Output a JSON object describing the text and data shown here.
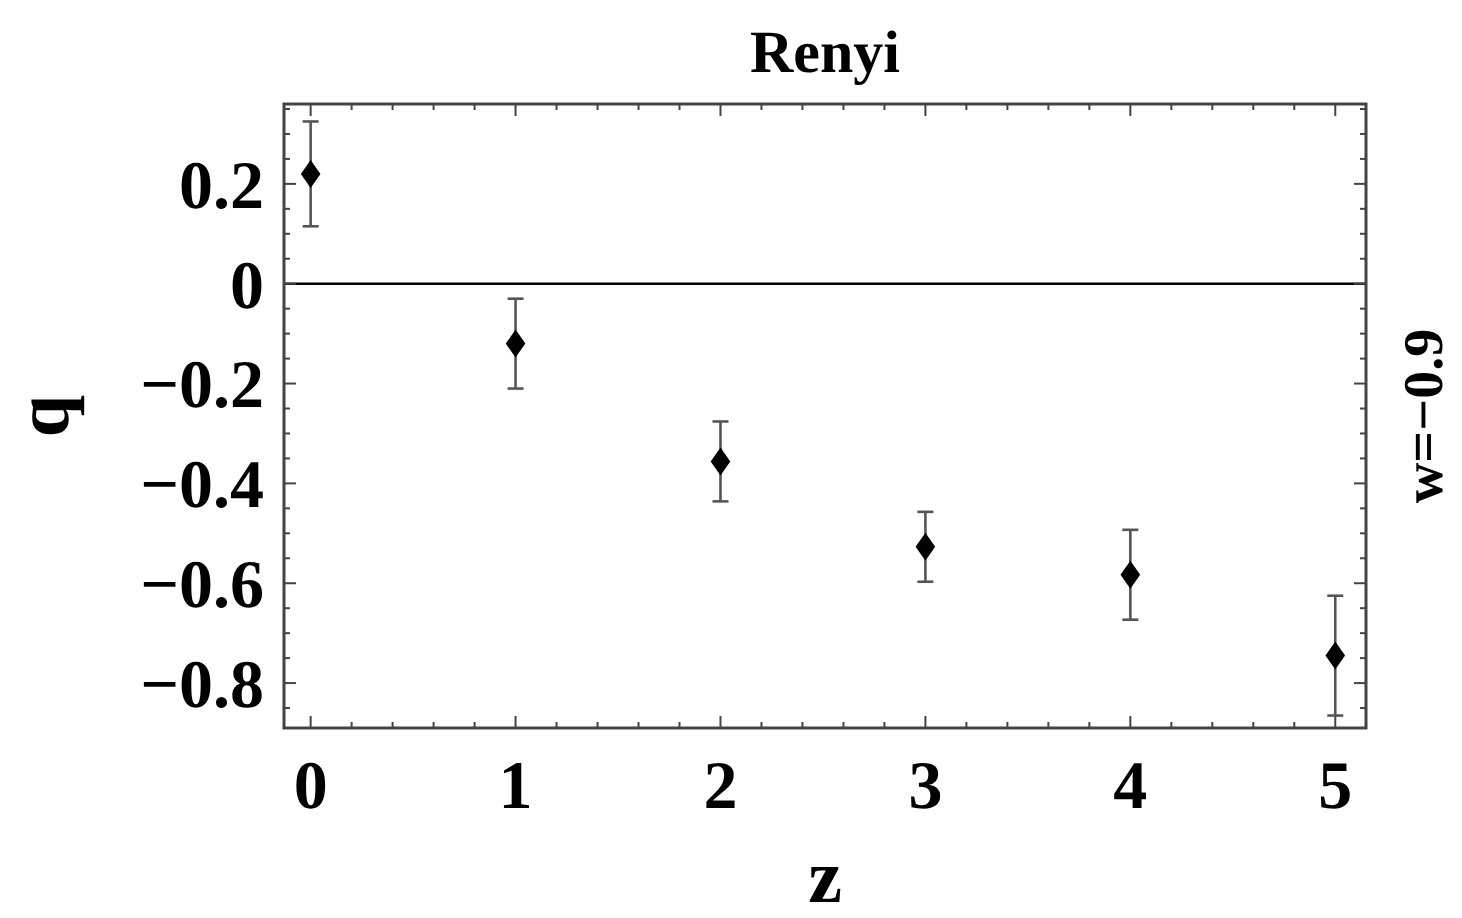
{
  "chart_data": {
    "type": "scatter",
    "title": "Renyi",
    "xlabel": "z",
    "ylabel": "q",
    "annotations": [
      "w=−0.9"
    ],
    "x": [
      0,
      1,
      2,
      3,
      4,
      5
    ],
    "series": [
      {
        "color": "#000000",
        "values": [
          0.22,
          -0.12,
          -0.356,
          -0.527,
          -0.583,
          -0.745
        ],
        "errors": [
          0.105,
          0.09,
          0.08,
          0.07,
          0.09,
          0.12
        ]
      }
    ],
    "marker": "diamond",
    "grid": false,
    "xlim": [
      -0.13,
      5.15
    ],
    "xticks": [
      0,
      {
        "value": 0.2,
        "label": null
      },
      {
        "value": 0.4,
        "label": null
      },
      {
        "value": 0.6,
        "label": null
      },
      {
        "value": 0.8,
        "label": null
      },
      1,
      {
        "value": 1.2,
        "label": null
      },
      {
        "value": 1.4,
        "label": null
      },
      {
        "value": 1.6,
        "label": null
      },
      {
        "value": 1.8,
        "label": null
      },
      2,
      {
        "value": 2.2,
        "label": null
      },
      {
        "value": 2.4,
        "label": null
      },
      {
        "value": 2.6,
        "label": null
      },
      {
        "value": 2.8,
        "label": null
      },
      3,
      {
        "value": 3.2,
        "label": null
      },
      {
        "value": 3.4,
        "label": null
      },
      {
        "value": 3.6,
        "label": null
      },
      {
        "value": 3.8,
        "label": null
      },
      4,
      {
        "value": 4.2,
        "label": null
      },
      {
        "value": 4.4,
        "label": null
      },
      {
        "value": 4.6,
        "label": null
      },
      {
        "value": 4.8,
        "label": null
      },
      5
    ],
    "ylim": [
      -0.89,
      0.36
    ],
    "yticks": [
      {
        "value": -0.85,
        "label": null
      },
      {
        "value": -0.8,
        "label": "−0.8"
      },
      {
        "value": -0.75,
        "label": null
      },
      {
        "value": -0.7,
        "label": null
      },
      {
        "value": -0.65,
        "label": null
      },
      {
        "value": -0.6,
        "label": "−0.6"
      },
      {
        "value": -0.55,
        "label": null
      },
      {
        "value": -0.5,
        "label": null
      },
      {
        "value": -0.45,
        "label": null
      },
      {
        "value": -0.4,
        "label": "−0.4"
      },
      {
        "value": -0.35,
        "label": null
      },
      {
        "value": -0.3,
        "label": null
      },
      {
        "value": -0.25,
        "label": null
      },
      {
        "value": -0.2,
        "label": "−0.2"
      },
      {
        "value": -0.15,
        "label": null
      },
      {
        "value": -0.1,
        "label": null
      },
      {
        "value": -0.05,
        "label": null
      },
      0,
      {
        "value": 0.05,
        "label": null
      },
      {
        "value": 0.1,
        "label": null
      },
      {
        "value": 0.15,
        "label": null
      },
      0.2,
      {
        "value": 0.25,
        "label": null
      },
      {
        "value": 0.3,
        "label": null
      },
      {
        "value": 0.35,
        "label": null
      }
    ],
    "ref_lines": [
      {
        "axis": "y",
        "value": 0,
        "color": "#000000"
      }
    ]
  }
}
